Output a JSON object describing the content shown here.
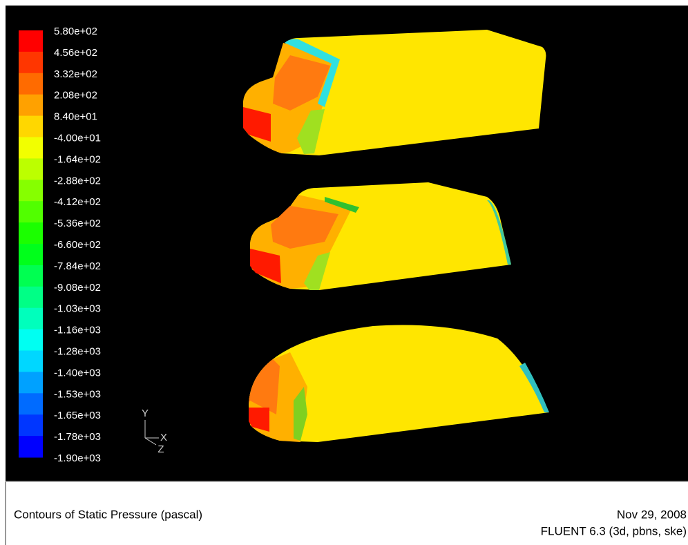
{
  "colorbar": {
    "labels": [
      "5.80e+02",
      "4.56e+02",
      "3.32e+02",
      "2.08e+02",
      "8.40e+01",
      "-4.00e+01",
      "-1.64e+02",
      "-2.88e+02",
      "-4.12e+02",
      "-5.36e+02",
      "-6.60e+02",
      "-7.84e+02",
      "-9.08e+02",
      "-1.03e+03",
      "-1.16e+03",
      "-1.28e+03",
      "-1.40e+03",
      "-1.53e+03",
      "-1.65e+03",
      "-1.78e+03",
      "-1.90e+03"
    ]
  },
  "axes": {
    "y": "Y",
    "x": "X",
    "z": "Z"
  },
  "footer": {
    "title": "Contours of Static Pressure (pascal)",
    "date": "Nov 29, 2008",
    "solver": "FLUENT 6.3 (3d, pbns, ske)"
  }
}
